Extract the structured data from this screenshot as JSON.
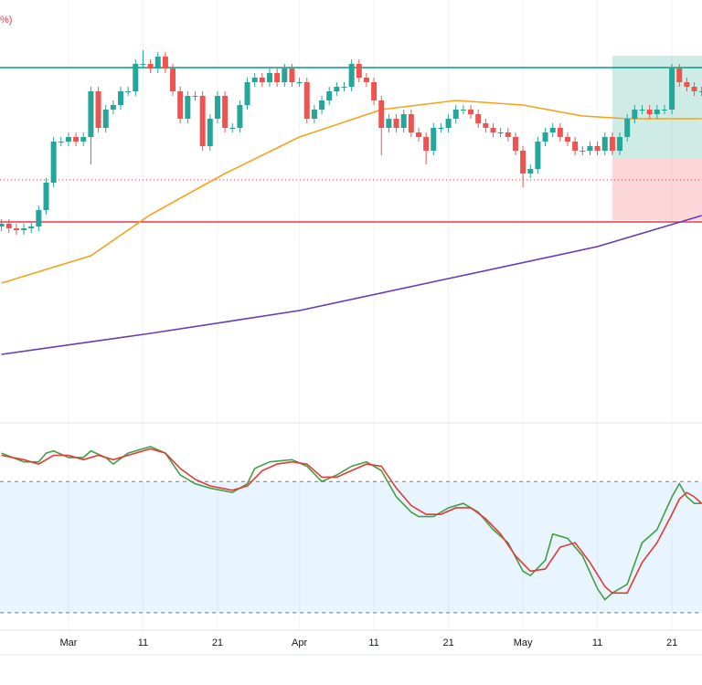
{
  "chart_data": [
    {
      "type": "candlestick",
      "title": "%)",
      "title_color": "#f23645",
      "categories": [
        null,
        null,
        null,
        null,
        null,
        null,
        null,
        null,
        null,
        "Mar",
        null,
        null,
        null,
        null,
        null,
        null,
        null,
        null,
        null,
        "11",
        null,
        null,
        null,
        null,
        null,
        null,
        null,
        null,
        null,
        "21",
        null,
        null,
        null,
        null,
        null,
        null,
        null,
        null,
        null,
        null,
        "Apr",
        null,
        null,
        null,
        null,
        null,
        null,
        null,
        null,
        null,
        "11",
        null,
        null,
        null,
        null,
        null,
        null,
        null,
        null,
        null,
        "21",
        null,
        null,
        null,
        null,
        null,
        null,
        null,
        null,
        null,
        "May",
        null,
        null,
        null,
        null,
        null,
        null,
        null,
        null,
        null,
        "11",
        null,
        null,
        null,
        null,
        null,
        null,
        null,
        null,
        null,
        "21",
        null,
        null,
        null,
        null
      ],
      "open": [
        212,
        215,
        210,
        208,
        210,
        212,
        230,
        260,
        305,
        305,
        310,
        305,
        310,
        360,
        320,
        340,
        345,
        360,
        360,
        390,
        390,
        385,
        398,
        385,
        360,
        330,
        355,
        355,
        300,
        330,
        355,
        320,
        320,
        345,
        370,
        375,
        370,
        380,
        370,
        385,
        370,
        370,
        330,
        340,
        350,
        360,
        365,
        365,
        390,
        375,
        370,
        350,
        320,
        330,
        320,
        335,
        315,
        310,
        295,
        320,
        320,
        330,
        340,
        340,
        335,
        325,
        320,
        315,
        315,
        310,
        295,
        270,
        275,
        305,
        315,
        320,
        310,
        305,
        295,
        295,
        300,
        295,
        310,
        295,
        310,
        330,
        340,
        340,
        335,
        340,
        340,
        385,
        370,
        365,
        360
      ],
      "high": [
        220,
        220,
        215,
        215,
        217,
        235,
        265,
        310,
        310,
        315,
        315,
        315,
        365,
        365,
        345,
        350,
        365,
        365,
        395,
        405,
        395,
        403,
        403,
        390,
        365,
        360,
        360,
        360,
        335,
        360,
        360,
        325,
        350,
        375,
        380,
        380,
        385,
        385,
        390,
        390,
        375,
        375,
        345,
        355,
        365,
        370,
        370,
        395,
        395,
        380,
        375,
        355,
        335,
        335,
        340,
        340,
        320,
        315,
        325,
        325,
        335,
        345,
        345,
        345,
        340,
        330,
        325,
        320,
        320,
        315,
        300,
        280,
        310,
        320,
        325,
        325,
        315,
        310,
        300,
        305,
        305,
        315,
        315,
        315,
        335,
        345,
        345,
        345,
        345,
        345,
        390,
        390,
        375,
        370,
        365
      ],
      "low": [
        207,
        205,
        203,
        203,
        205,
        207,
        225,
        255,
        300,
        300,
        300,
        300,
        280,
        315,
        315,
        335,
        340,
        355,
        355,
        385,
        380,
        380,
        380,
        355,
        325,
        325,
        350,
        295,
        295,
        325,
        315,
        315,
        315,
        340,
        365,
        365,
        365,
        365,
        365,
        365,
        365,
        325,
        325,
        335,
        345,
        355,
        360,
        360,
        370,
        365,
        345,
        290,
        315,
        315,
        315,
        310,
        305,
        280,
        290,
        315,
        315,
        325,
        335,
        330,
        320,
        315,
        310,
        310,
        305,
        290,
        255,
        265,
        270,
        300,
        310,
        305,
        300,
        290,
        290,
        290,
        290,
        290,
        290,
        290,
        305,
        325,
        335,
        330,
        330,
        335,
        335,
        365,
        360,
        355,
        355
      ],
      "close": [
        215,
        210,
        208,
        210,
        212,
        230,
        260,
        305,
        305,
        310,
        305,
        310,
        360,
        320,
        340,
        345,
        360,
        360,
        390,
        390,
        385,
        398,
        385,
        360,
        330,
        355,
        355,
        300,
        330,
        355,
        320,
        320,
        345,
        370,
        375,
        370,
        380,
        370,
        385,
        370,
        370,
        330,
        340,
        350,
        360,
        365,
        365,
        390,
        375,
        370,
        350,
        320,
        330,
        320,
        335,
        315,
        310,
        295,
        320,
        320,
        330,
        340,
        340,
        335,
        325,
        320,
        315,
        315,
        310,
        295,
        270,
        275,
        305,
        315,
        320,
        310,
        305,
        295,
        295,
        300,
        295,
        310,
        295,
        310,
        330,
        340,
        340,
        335,
        340,
        340,
        385,
        370,
        365,
        360,
        360
      ],
      "up_color": "#26a69a",
      "down_color": "#ef5350",
      "ylim": [
        0,
        460
      ],
      "overlays": [
        {
          "color": "#f7a21b",
          "x": [
            0,
            12,
            20,
            30,
            40,
            51,
            61,
            70,
            78,
            84,
            94
          ],
          "values": [
            150,
            180,
            225,
            270,
            310,
            340,
            350,
            345,
            333,
            330,
            330
          ]
        },
        {
          "color": "#673ab7",
          "x": [
            0,
            20,
            40,
            60,
            80,
            94
          ],
          "values": [
            72,
            95,
            120,
            155,
            190,
            224
          ]
        }
      ],
      "hlines": [
        {
          "value": 386,
          "color": "#089981",
          "style": "solid"
        },
        {
          "value": 217,
          "color": "#f23645",
          "style": "solid"
        },
        {
          "value": 263,
          "color": "#f23645",
          "style": "dotted"
        }
      ],
      "position": {
        "x_start": 82,
        "entry": 287,
        "target": 399,
        "stop": 219,
        "target_color": "#089981",
        "stop_color": "#f23645"
      }
    },
    {
      "type": "line",
      "ylim": [
        12,
        106
      ],
      "band": [
        20,
        80
      ],
      "band_color": "#2196f3",
      "series": [
        {
          "color": "#43a047",
          "x": [
            0,
            3,
            5,
            6,
            7,
            9,
            11,
            12,
            14,
            15,
            17,
            20,
            22,
            24,
            26,
            28,
            31,
            33,
            34,
            36,
            39,
            41,
            43,
            45,
            47,
            49,
            51,
            53,
            55,
            56,
            58,
            60,
            62,
            64,
            66,
            68,
            70,
            71,
            73,
            74,
            76,
            78,
            80,
            81,
            82,
            84,
            86,
            88,
            90,
            91,
            92,
            93,
            94
          ],
          "values": [
            93,
            89,
            89,
            93,
            94,
            91,
            91,
            94,
            91,
            88,
            93,
            96,
            93,
            83,
            79,
            77,
            75,
            79,
            86,
            89,
            90,
            87,
            80,
            83,
            87,
            89,
            85,
            73,
            66,
            64,
            64,
            68,
            70,
            66,
            58,
            52,
            39,
            37,
            44,
            56,
            54,
            46,
            31,
            26,
            29,
            33,
            52,
            58,
            73,
            79,
            73,
            70,
            70
          ]
        },
        {
          "color": "#e53935",
          "x": [
            0,
            3,
            5,
            7,
            9,
            11,
            13,
            15,
            17,
            20,
            22,
            24,
            26,
            28,
            31,
            33,
            35,
            37,
            39,
            41,
            43,
            45,
            47,
            49,
            51,
            53,
            55,
            57,
            59,
            61,
            63,
            65,
            67,
            69,
            71,
            73,
            75,
            77,
            79,
            81,
            82,
            84,
            86,
            88,
            90,
            91,
            92,
            93,
            94
          ],
          "values": [
            92,
            90,
            88,
            92,
            92,
            90,
            92,
            90,
            92,
            95,
            93,
            86,
            81,
            78,
            76,
            78,
            85,
            88,
            89,
            88,
            82,
            82,
            85,
            88,
            87,
            77,
            69,
            65,
            65,
            68,
            68,
            63,
            56,
            46,
            39,
            40,
            50,
            52,
            43,
            32,
            29,
            29,
            43,
            52,
            65,
            72,
            75,
            73,
            70
          ]
        }
      ]
    }
  ]
}
